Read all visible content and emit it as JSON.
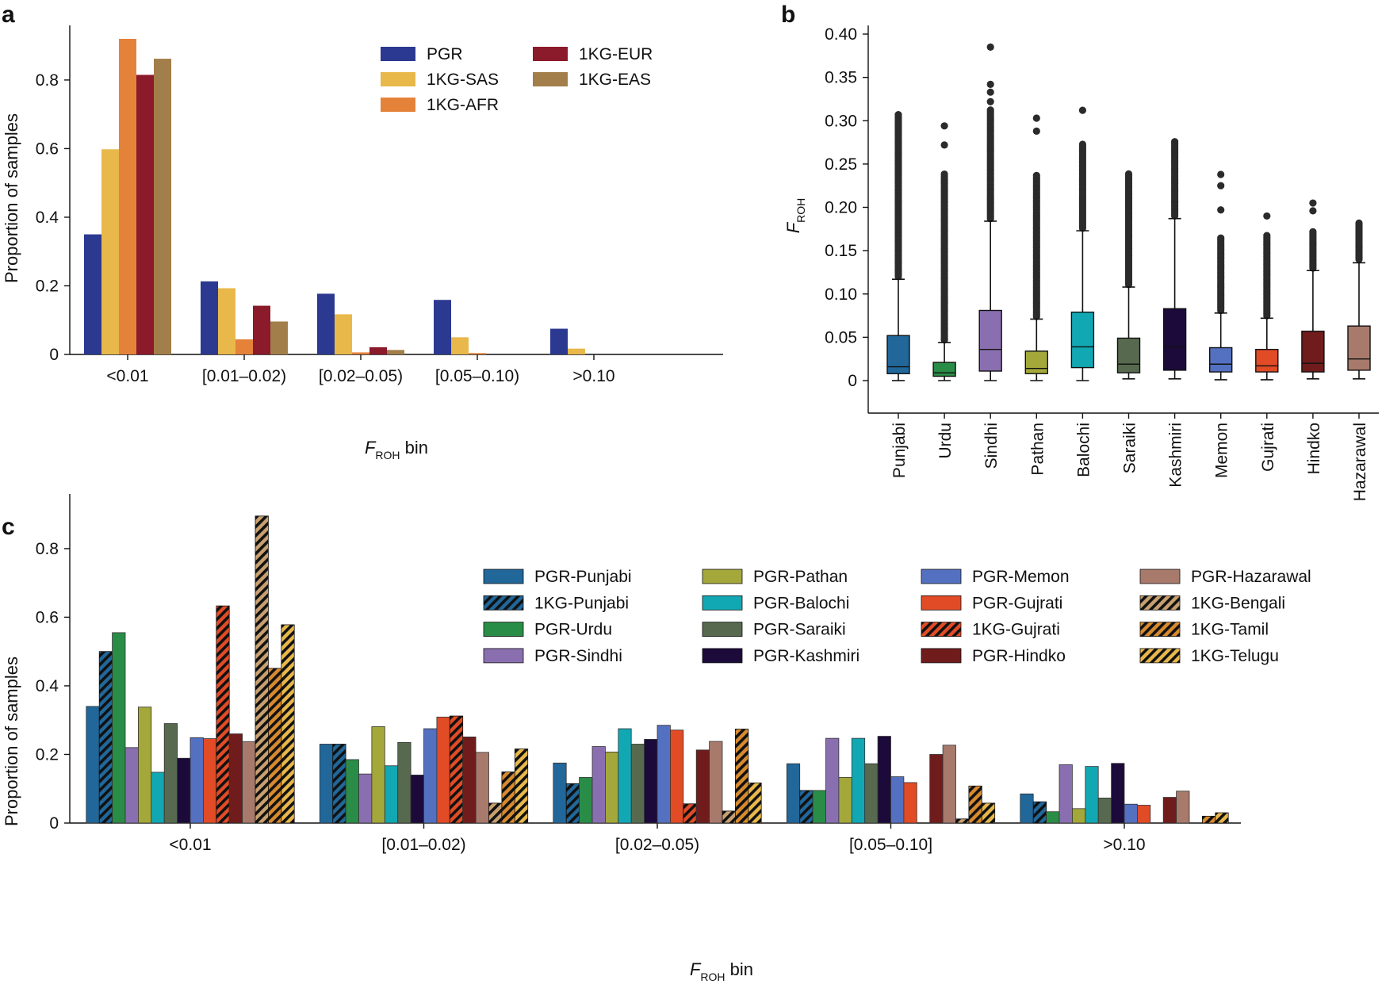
{
  "panels": {
    "a": {
      "letter": "a",
      "ylabel": "Proportion of samples",
      "xlabel_main": "F",
      "xlabel_sub": "ROH",
      "xlabel_tail": " bin"
    },
    "b": {
      "letter": "b",
      "ylabel_main": "F",
      "ylabel_sub": "ROH"
    },
    "c": {
      "letter": "c",
      "ylabel": "Proportion of samples",
      "xlabel_main": "F",
      "xlabel_sub": "ROH",
      "xlabel_tail": " bin"
    }
  },
  "chart_data": [
    {
      "id": "a",
      "type": "bar",
      "categories": [
        "<0.01",
        "[0.01–0.02)",
        "[0.02–0.05)",
        "[0.05–0.10)",
        ">0.10"
      ],
      "ylim": [
        0,
        0.95
      ],
      "yticks": [
        0,
        0.2,
        0.4,
        0.6,
        0.8
      ],
      "ytick_labels": [
        "0",
        "0.2",
        "0.4",
        "0.6",
        "0.8"
      ],
      "series": [
        {
          "name": "PGR",
          "color": "#2b3990",
          "values": [
            0.35,
            0.213,
            0.177,
            0.159,
            0.075
          ]
        },
        {
          "name": "1KG-SAS",
          "color": "#e8b84b",
          "values": [
            0.598,
            0.193,
            0.117,
            0.05,
            0.017
          ]
        },
        {
          "name": "1KG-AFR",
          "color": "#e5823a",
          "values": [
            0.92,
            0.044,
            0.006,
            0.004,
            0
          ]
        },
        {
          "name": "1KG-EUR",
          "color": "#8b1a2b",
          "values": [
            0.815,
            0.142,
            0.021,
            0,
            0
          ]
        },
        {
          "name": "1KG-EAS",
          "color": "#a27e4a",
          "values": [
            0.862,
            0.096,
            0.013,
            0,
            0
          ]
        }
      ],
      "legend": "top-right"
    },
    {
      "id": "b",
      "type": "box",
      "categories": [
        "Punjabi",
        "Urdu",
        "Sindhi",
        "Pathan",
        "Balochi",
        "Saraiki",
        "Kashmiri",
        "Memon",
        "Gujrati",
        "Hindko",
        "Hazarawal"
      ],
      "ylim": [
        -0.02,
        0.41
      ],
      "yticks": [
        0,
        0.05,
        0.1,
        0.15,
        0.2,
        0.25,
        0.3,
        0.35,
        0.4
      ],
      "ytick_labels": [
        "0",
        "0.05",
        "0.10",
        "0.15",
        "0.20",
        "0.25",
        "0.30",
        "0.35",
        "0.40"
      ],
      "boxes": [
        {
          "name": "Punjabi",
          "color": "#21679a",
          "min": 0,
          "q1": 0.008,
          "median": 0.016,
          "q3": 0.052,
          "whisker_high": 0.117,
          "outliers_from": 0.12,
          "outliers_to": 0.307
        },
        {
          "name": "Urdu",
          "color": "#2a8d47",
          "min": 0,
          "q1": 0.005,
          "median": 0.009,
          "q3": 0.021,
          "whisker_high": 0.044,
          "outliers_from": 0.047,
          "outliers_to": 0.24,
          "extra_outliers": [
            0.272,
            0.294
          ]
        },
        {
          "name": "Sindhi",
          "color": "#8a6fb0",
          "min": 0,
          "q1": 0.011,
          "median": 0.036,
          "q3": 0.081,
          "whisker_high": 0.184,
          "outliers_from": 0.187,
          "outliers_to": 0.313,
          "extra_outliers": [
            0.322,
            0.333,
            0.342,
            0.385
          ]
        },
        {
          "name": "Pathan",
          "color": "#a4a83a",
          "min": 0,
          "q1": 0.008,
          "median": 0.014,
          "q3": 0.034,
          "whisker_high": 0.071,
          "outliers_from": 0.074,
          "outliers_to": 0.238,
          "extra_outliers": [
            0.288,
            0.303
          ]
        },
        {
          "name": "Balochi",
          "color": "#12a8b3",
          "min": 0,
          "q1": 0.015,
          "median": 0.039,
          "q3": 0.079,
          "whisker_high": 0.173,
          "outliers_from": 0.176,
          "outliers_to": 0.274,
          "extra_outliers": [
            0.312
          ]
        },
        {
          "name": "Saraiki",
          "color": "#576a4f",
          "min": 0.002,
          "q1": 0.009,
          "median": 0.019,
          "q3": 0.049,
          "whisker_high": 0.108,
          "outliers_from": 0.111,
          "outliers_to": 0.24
        },
        {
          "name": "Kashmiri",
          "color": "#1c0a3a",
          "min": 0.002,
          "q1": 0.012,
          "median": 0.039,
          "q3": 0.083,
          "whisker_high": 0.187,
          "outliers_from": 0.19,
          "outliers_to": 0.277
        },
        {
          "name": "Memon",
          "color": "#5470c0",
          "min": 0.001,
          "q1": 0.01,
          "median": 0.019,
          "q3": 0.038,
          "whisker_high": 0.078,
          "outliers_from": 0.081,
          "outliers_to": 0.165,
          "extra_outliers": [
            0.197,
            0.225,
            0.238
          ]
        },
        {
          "name": "Gujrati",
          "color": "#e14b26",
          "min": 0.001,
          "q1": 0.01,
          "median": 0.017,
          "q3": 0.036,
          "whisker_high": 0.072,
          "outliers_from": 0.075,
          "outliers_to": 0.168,
          "extra_outliers": [
            0.19
          ]
        },
        {
          "name": "Hindko",
          "color": "#701c1c",
          "min": 0.002,
          "q1": 0.01,
          "median": 0.02,
          "q3": 0.057,
          "whisker_high": 0.127,
          "outliers_from": 0.13,
          "outliers_to": 0.172,
          "extra_outliers": [
            0.196,
            0.205
          ]
        },
        {
          "name": "Hazarawal",
          "color": "#a87a6c",
          "min": 0.002,
          "q1": 0.012,
          "median": 0.025,
          "q3": 0.063,
          "whisker_high": 0.136,
          "outliers_from": 0.14,
          "outliers_to": 0.182
        }
      ]
    },
    {
      "id": "c",
      "type": "bar",
      "categories": [
        "<0.01",
        "[0.01–0.02)",
        "[0.02–0.05)",
        "[0.05–0.10]",
        ">0.10"
      ],
      "ylim": [
        0,
        0.95
      ],
      "yticks": [
        0,
        0.2,
        0.4,
        0.6,
        0.8
      ],
      "ytick_labels": [
        "0",
        "0.2",
        "0.4",
        "0.6",
        "0.8"
      ],
      "series": [
        {
          "name": "PGR-Punjabi",
          "color": "#21679a",
          "hatch": false,
          "values": [
            0.34,
            0.23,
            0.175,
            0.173,
            0.085
          ]
        },
        {
          "name": "1KG-Punjabi",
          "color": "#21679a",
          "hatch": true,
          "values": [
            0.5,
            0.23,
            0.115,
            0.095,
            0.062
          ]
        },
        {
          "name": "PGR-Urdu",
          "color": "#2a8d47",
          "hatch": false,
          "values": [
            0.555,
            0.185,
            0.133,
            0.095,
            0.033
          ]
        },
        {
          "name": "PGR-Sindhi",
          "color": "#8a6fb0",
          "hatch": false,
          "values": [
            0.22,
            0.143,
            0.223,
            0.247,
            0.17
          ]
        },
        {
          "name": "PGR-Pathan",
          "color": "#a4a83a",
          "hatch": false,
          "values": [
            0.338,
            0.281,
            0.207,
            0.133,
            0.042
          ]
        },
        {
          "name": "PGR-Balochi",
          "color": "#12a8b3",
          "hatch": false,
          "values": [
            0.148,
            0.167,
            0.275,
            0.247,
            0.165
          ]
        },
        {
          "name": "PGR-Saraiki",
          "color": "#576a4f",
          "hatch": false,
          "values": [
            0.29,
            0.235,
            0.23,
            0.173,
            0.073
          ]
        },
        {
          "name": "PGR-Kashmiri",
          "color": "#1c0a3a",
          "hatch": false,
          "values": [
            0.189,
            0.14,
            0.244,
            0.253,
            0.174
          ]
        },
        {
          "name": "PGR-Memon",
          "color": "#5470c0",
          "hatch": false,
          "values": [
            0.249,
            0.275,
            0.285,
            0.135,
            0.055
          ]
        },
        {
          "name": "PGR-Gujrati",
          "color": "#e14b26",
          "hatch": false,
          "values": [
            0.246,
            0.309,
            0.271,
            0.118,
            0.052
          ]
        },
        {
          "name": "1KG-Gujrati",
          "color": "#e14b26",
          "hatch": true,
          "values": [
            0.633,
            0.312,
            0.056,
            0,
            0
          ]
        },
        {
          "name": "PGR-Hindko",
          "color": "#701c1c",
          "hatch": false,
          "values": [
            0.26,
            0.251,
            0.213,
            0.2,
            0.075
          ]
        },
        {
          "name": "PGR-Hazarawal",
          "color": "#a87a6c",
          "hatch": false,
          "values": [
            0.237,
            0.206,
            0.238,
            0.227,
            0.093
          ]
        },
        {
          "name": "1KG-Bengali",
          "color": "#c8a070",
          "hatch": true,
          "values": [
            0.895,
            0.058,
            0.035,
            0.012,
            0
          ]
        },
        {
          "name": "1KG-Tamil",
          "color": "#d88a2e",
          "hatch": true,
          "values": [
            0.451,
            0.149,
            0.274,
            0.108,
            0.02
          ]
        },
        {
          "name": "1KG-Telugu",
          "color": "#e8b84b",
          "hatch": true,
          "values": [
            0.578,
            0.216,
            0.117,
            0.058,
            0.03
          ]
        }
      ],
      "legend": "top-right"
    }
  ]
}
